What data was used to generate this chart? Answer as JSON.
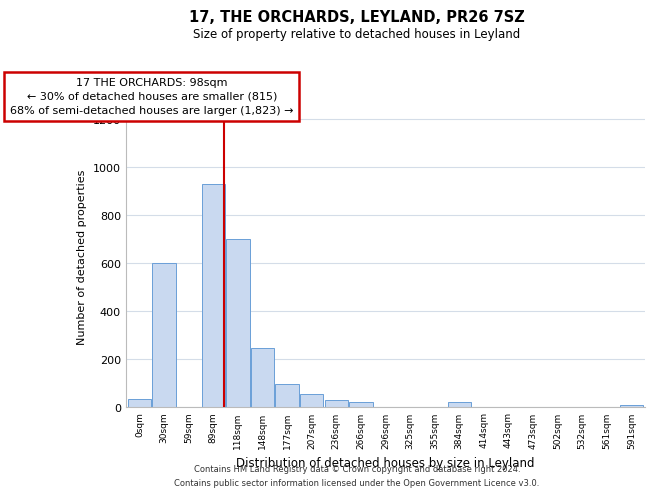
{
  "title": "17, THE ORCHARDS, LEYLAND, PR26 7SZ",
  "subtitle": "Size of property relative to detached houses in Leyland",
  "xlabel": "Distribution of detached houses by size in Leyland",
  "ylabel": "Number of detached properties",
  "bin_labels": [
    "0sqm",
    "30sqm",
    "59sqm",
    "89sqm",
    "118sqm",
    "148sqm",
    "177sqm",
    "207sqm",
    "236sqm",
    "266sqm",
    "296sqm",
    "325sqm",
    "355sqm",
    "384sqm",
    "414sqm",
    "443sqm",
    "473sqm",
    "502sqm",
    "532sqm",
    "561sqm",
    "591sqm"
  ],
  "bar_values": [
    35,
    600,
    0,
    930,
    700,
    245,
    95,
    55,
    30,
    20,
    0,
    0,
    0,
    20,
    0,
    0,
    0,
    0,
    0,
    0,
    10
  ],
  "bar_color": "#c9d9f0",
  "bar_edge_color": "#6a9fd8",
  "vline_x_index": 3.42,
  "annotation_line0": "17 THE ORCHARDS: 98sqm",
  "annotation_line1": "← 30% of detached houses are smaller (815)",
  "annotation_line2": "68% of semi-detached houses are larger (1,823) →",
  "vline_color": "#cc0000",
  "annotation_box_edge": "#cc0000",
  "footer_line1": "Contains HM Land Registry data © Crown copyright and database right 2024.",
  "footer_line2": "Contains public sector information licensed under the Open Government Licence v3.0.",
  "ylim": [
    0,
    1250
  ],
  "yticks": [
    0,
    200,
    400,
    600,
    800,
    1000,
    1200
  ],
  "background_color": "#ffffff",
  "grid_color": "#d4dde8"
}
